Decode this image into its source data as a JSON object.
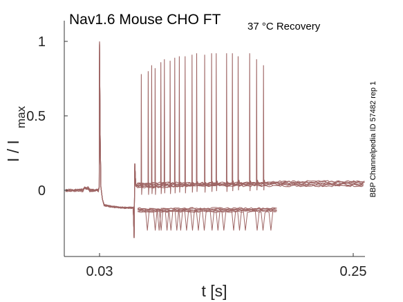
{
  "chart_data": {
    "type": "line",
    "title": "Nav1.6  Mouse  CHO FT",
    "title_subscript": "37 °C  Recovery",
    "xlabel": "t [s]",
    "ylabel_main": "I / I",
    "ylabel_sub": "max",
    "side_label": "BBP Channelpedia ID 57482 rep 1",
    "x_ticks": [
      0.03,
      0.25
    ],
    "x_tick_labels": [
      "0.03",
      "0.25"
    ],
    "y_ticks": [
      0,
      0.5,
      1
    ],
    "y_tick_labels": [
      "0",
      "0.5",
      "1"
    ],
    "xlim": [
      0.0,
      0.26
    ],
    "ylim": [
      -0.45,
      1.12
    ],
    "grid": false,
    "line_color": "#9e6564",
    "protocol": {
      "t_first_pulse": 0.03,
      "t_test_start": 0.06,
      "first_peak": 1.0,
      "baseline": 0.0,
      "pre_test_level": -0.12,
      "sweeps": [
        {
          "spikes": [
            0.066,
            0.072,
            0.078
          ],
          "peaks": [
            0.78,
            0.8,
            0.82
          ]
        },
        {
          "spikes": [
            0.075,
            0.083,
            0.091
          ],
          "peaks": [
            0.84,
            0.86,
            0.87
          ]
        },
        {
          "spikes": [
            0.086,
            0.095,
            0.104
          ],
          "peaks": [
            0.88,
            0.89,
            0.9
          ]
        },
        {
          "spikes": [
            0.099,
            0.11,
            0.121
          ],
          "peaks": [
            0.9,
            0.91,
            0.91
          ]
        },
        {
          "spikes": [
            0.114,
            0.127,
            0.14
          ],
          "peaks": [
            0.92,
            0.92,
            0.92
          ]
        },
        {
          "spikes": [
            0.131,
            0.145,
            0.16
          ],
          "peaks": [
            0.92,
            0.92,
            0.92
          ]
        },
        {
          "spikes": [
            0.15,
            0.166,
            0.172
          ],
          "peaks": [
            0.9,
            0.88,
            0.84
          ]
        }
      ]
    }
  }
}
